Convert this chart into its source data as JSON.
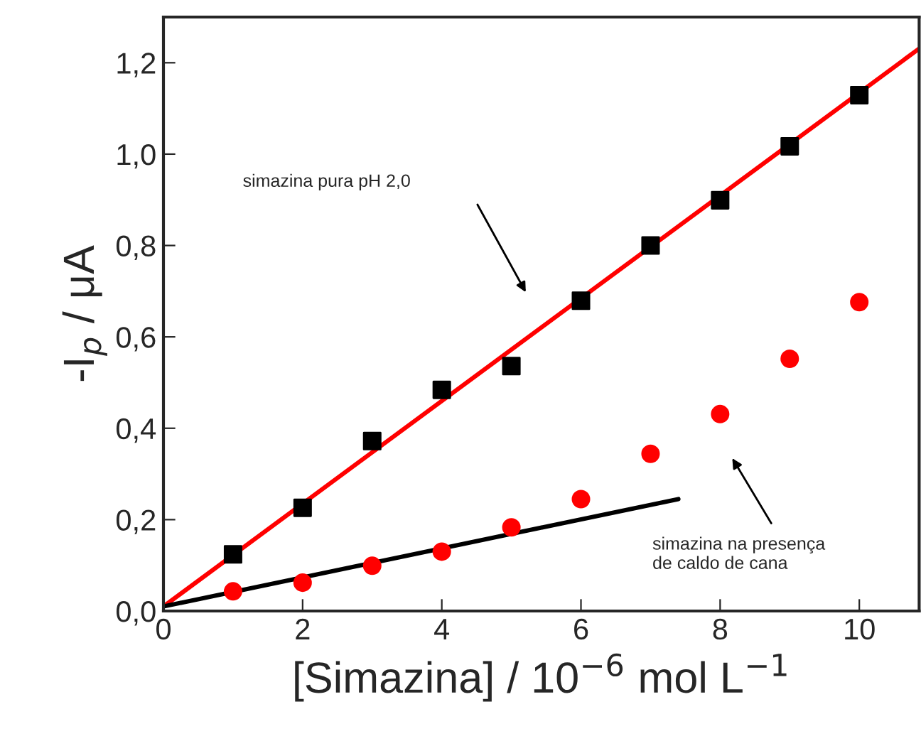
{
  "chart_data": {
    "type": "scatter",
    "xlabel": "[Simazina] / 10$^{−6}$ mol L$^{−1}$",
    "ylabel": "-I$_{p}$ / μA",
    "xlim": [
      0,
      10.86
    ],
    "ylim": [
      0,
      1.3
    ],
    "xticks": [
      0,
      2,
      4,
      6,
      8,
      10
    ],
    "yticks": [
      {
        "value": 0,
        "label": "0,0"
      },
      {
        "value": 0.2,
        "label": "0,2"
      },
      {
        "value": 0.4,
        "label": "0,4"
      },
      {
        "value": 0.6,
        "label": "0,6"
      },
      {
        "value": 0.8,
        "label": "0,8"
      },
      {
        "value": 1.0,
        "label": "1,0"
      },
      {
        "value": 1.2,
        "label": "1,2"
      }
    ],
    "grid": false,
    "legend": false,
    "series": [
      {
        "marker": "square",
        "color": "#000000",
        "x": [
          1,
          2,
          3,
          4,
          5,
          6,
          7,
          8,
          9,
          10
        ],
        "values": [
          0.124,
          0.226,
          0.372,
          0.484,
          0.536,
          0.679,
          0.8,
          0.899,
          1.017,
          1.129
        ]
      },
      {
        "marker": "circle",
        "color": "#ff0000",
        "x": [
          1,
          2,
          3,
          4,
          5,
          6,
          7,
          8,
          9,
          10
        ],
        "values": [
          0.043,
          0.062,
          0.099,
          0.13,
          0.183,
          0.245,
          0.344,
          0.431,
          0.552,
          0.676
        ]
      },
      {
        "type": "line",
        "marker": "none",
        "color": "#ff0000",
        "x": [
          0,
          10.86
        ],
        "values": [
          0.01,
          1.231
        ]
      },
      {
        "type": "line",
        "marker": "none",
        "color": "#000000",
        "x": [
          0,
          7.4
        ],
        "values": [
          0.01,
          0.245
        ]
      }
    ],
    "annotations": [
      "simazina pura pH 2,0",
      "simazina na presença\nde caldo de cana"
    ]
  }
}
